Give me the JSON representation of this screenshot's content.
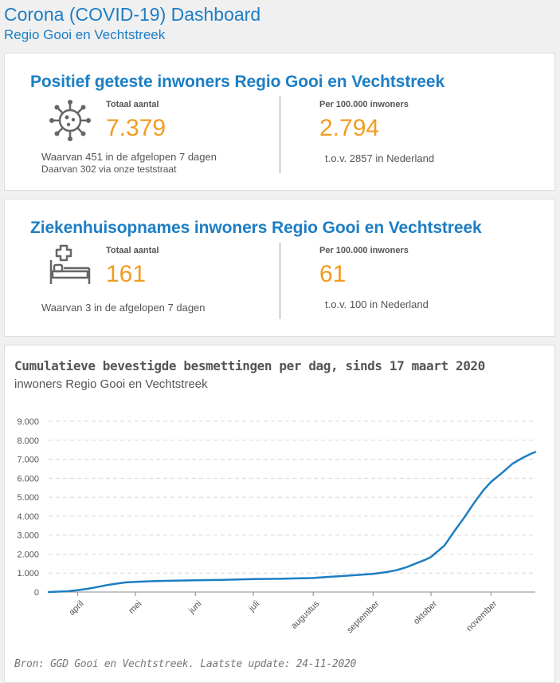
{
  "header": {
    "title": "Corona (COVID-19) Dashboard",
    "subtitle": "Regio Gooi en Vechtstreek"
  },
  "cards": [
    {
      "title": "Positief geteste inwoners Regio Gooi en Vechtstreek",
      "icon": "virus-icon",
      "total_label": "Totaal aantal",
      "total_value": "7.379",
      "total_note": "Waarvan 451 in de afgelopen 7 dagen",
      "total_note2": "Daarvan 302 via onze teststraat",
      "per_label": "Per 100.000 inwoners",
      "per_value": "2.794",
      "per_note": "t.o.v. 2857 in Nederland"
    },
    {
      "title": "Ziekenhuisopnames inwoners Regio Gooi en Vechtstreek",
      "icon": "hospital-bed-icon",
      "total_label": "Totaal aantal",
      "total_value": "161",
      "total_note": "Waarvan 3 in de afgelopen 7 dagen",
      "per_label": "Per 100.000 inwoners",
      "per_value": "61",
      "per_note": "t.o.v. 100 in Nederland"
    }
  ],
  "chart": {
    "title": "Cumulatieve bevestigde besmettingen per dag, sinds 17 maart 2020",
    "subtitle": "inwoners Regio Gooi en Vechtstreek",
    "source": "Bron: GGD Gooi en Vechtstreek. Laatste update: 24-11-2020"
  },
  "chart_data": {
    "type": "line",
    "x_unit": "day",
    "x_start": "2020-03-17",
    "x_end": "2020-11-24",
    "x_tick_labels": [
      "april",
      "mei",
      "juni",
      "juli",
      "augustus",
      "september",
      "oktober",
      "november"
    ],
    "x_tick_days": [
      15,
      45,
      76,
      106,
      137,
      168,
      198,
      229
    ],
    "ylim": [
      0,
      9000
    ],
    "y_ticks": [
      0,
      1000,
      2000,
      3000,
      4000,
      5000,
      6000,
      7000,
      8000,
      9000
    ],
    "y_tick_labels": [
      "0",
      "1.000",
      "2.000",
      "3.000",
      "4.000",
      "5.000",
      "6.000",
      "7.000",
      "8.000",
      "9.000"
    ],
    "grid": true,
    "color": "#1d7ec4",
    "series": [
      {
        "days": [
          0,
          10,
          15,
          20,
          25,
          30,
          35,
          40,
          45,
          55,
          65,
          76,
          90,
          106,
          120,
          137,
          145,
          150,
          160,
          168,
          175,
          180,
          185,
          190,
          195,
          198,
          205,
          210,
          215,
          220,
          225,
          229,
          235,
          240,
          245,
          250,
          252
        ],
        "values": [
          0,
          40,
          100,
          170,
          260,
          360,
          440,
          510,
          540,
          580,
          600,
          620,
          640,
          680,
          700,
          740,
          800,
          830,
          900,
          960,
          1050,
          1150,
          1300,
          1500,
          1700,
          1850,
          2450,
          3200,
          3900,
          4650,
          5350,
          5800,
          6300,
          6750,
          7050,
          7300,
          7379
        ]
      }
    ]
  }
}
